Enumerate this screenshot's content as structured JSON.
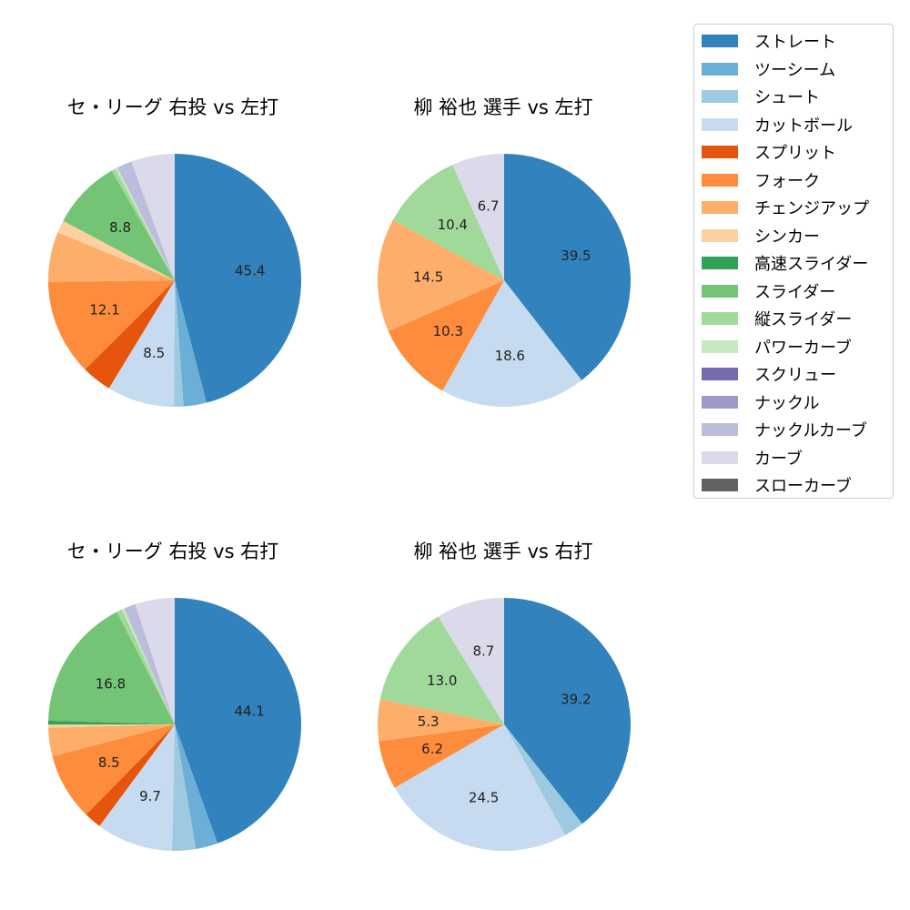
{
  "legend": [
    {
      "label": "ストレート",
      "color": "#3182bd"
    },
    {
      "label": "ツーシーム",
      "color": "#6baed6"
    },
    {
      "label": "シュート",
      "color": "#9ecae1"
    },
    {
      "label": "カットボール",
      "color": "#c6dbef"
    },
    {
      "label": "スプリット",
      "color": "#e6550d"
    },
    {
      "label": "フォーク",
      "color": "#fd8d3c"
    },
    {
      "label": "チェンジアップ",
      "color": "#fdae6b"
    },
    {
      "label": "シンカー",
      "color": "#fdd0a2"
    },
    {
      "label": "高速スライダー",
      "color": "#31a354"
    },
    {
      "label": "スライダー",
      "color": "#74c476"
    },
    {
      "label": "縦スライダー",
      "color": "#a1d99b"
    },
    {
      "label": "パワーカーブ",
      "color": "#c7e9c0"
    },
    {
      "label": "スクリュー",
      "color": "#756bb1"
    },
    {
      "label": "ナックル",
      "color": "#9e9ac8"
    },
    {
      "label": "ナックルカーブ",
      "color": "#bcbddc"
    },
    {
      "label": "カーブ",
      "color": "#dadaeb"
    },
    {
      "label": "スローカーブ",
      "color": "#636363"
    }
  ],
  "chart_data": [
    {
      "type": "pie",
      "title": "セ・リーグ 右投 vs 左打",
      "slices": [
        {
          "name": "ストレート",
          "value": 45.4,
          "label": "45.4"
        },
        {
          "name": "ツーシーム",
          "value": 2.9,
          "label": ""
        },
        {
          "name": "シュート",
          "value": 1.2,
          "label": ""
        },
        {
          "name": "カットボール",
          "value": 8.5,
          "label": "8.5"
        },
        {
          "name": "スプリット",
          "value": 3.8,
          "label": ""
        },
        {
          "name": "フォーク",
          "value": 12.1,
          "label": "12.1"
        },
        {
          "name": "チェンジアップ",
          "value": 6.3,
          "label": ""
        },
        {
          "name": "シンカー",
          "value": 1.6,
          "label": ""
        },
        {
          "name": "スライダー",
          "value": 8.8,
          "label": "8.8"
        },
        {
          "name": "縦スライダー",
          "value": 0.5,
          "label": ""
        },
        {
          "name": "パワーカーブ",
          "value": 0.3,
          "label": ""
        },
        {
          "name": "ナックルカーブ",
          "value": 1.9,
          "label": ""
        },
        {
          "name": "カーブ",
          "value": 5.5,
          "label": ""
        }
      ]
    },
    {
      "type": "pie",
      "title": "柳 裕也 選手 vs 左打",
      "slices": [
        {
          "name": "ストレート",
          "value": 39.5,
          "label": "39.5"
        },
        {
          "name": "カットボール",
          "value": 18.6,
          "label": "18.6"
        },
        {
          "name": "フォーク",
          "value": 10.3,
          "label": "10.3"
        },
        {
          "name": "チェンジアップ",
          "value": 14.5,
          "label": "14.5"
        },
        {
          "name": "縦スライダー",
          "value": 10.4,
          "label": "10.4"
        },
        {
          "name": "カーブ",
          "value": 6.7,
          "label": "6.7"
        }
      ]
    },
    {
      "type": "pie",
      "title": "セ・リーグ 右投 vs 右打",
      "slices": [
        {
          "name": "ストレート",
          "value": 44.1,
          "label": "44.1"
        },
        {
          "name": "ツーシーム",
          "value": 2.8,
          "label": ""
        },
        {
          "name": "シュート",
          "value": 3.0,
          "label": ""
        },
        {
          "name": "カットボール",
          "value": 9.7,
          "label": "9.7"
        },
        {
          "name": "スプリット",
          "value": 2.2,
          "label": ""
        },
        {
          "name": "フォーク",
          "value": 8.5,
          "label": "8.5"
        },
        {
          "name": "チェンジアップ",
          "value": 3.6,
          "label": ""
        },
        {
          "name": "シンカー",
          "value": 0.4,
          "label": ""
        },
        {
          "name": "高速スライダー",
          "value": 0.5,
          "label": ""
        },
        {
          "name": "スライダー",
          "value": 16.8,
          "label": "16.8"
        },
        {
          "name": "縦スライダー",
          "value": 0.7,
          "label": ""
        },
        {
          "name": "パワーカーブ",
          "value": 0.3,
          "label": ""
        },
        {
          "name": "ナックルカーブ",
          "value": 1.5,
          "label": ""
        },
        {
          "name": "カーブ",
          "value": 5.0,
          "label": ""
        }
      ]
    },
    {
      "type": "pie",
      "title": "柳 裕也 選手 vs 右打",
      "slices": [
        {
          "name": "ストレート",
          "value": 39.2,
          "label": "39.2"
        },
        {
          "name": "シュート",
          "value": 2.6,
          "label": ""
        },
        {
          "name": "カットボール",
          "value": 24.5,
          "label": "24.5"
        },
        {
          "name": "フォーク",
          "value": 6.2,
          "label": "6.2"
        },
        {
          "name": "チェンジアップ",
          "value": 5.3,
          "label": "5.3"
        },
        {
          "name": "縦スライダー",
          "value": 13.0,
          "label": "13.0"
        },
        {
          "name": "カーブ",
          "value": 8.7,
          "label": "8.7"
        }
      ]
    }
  ]
}
